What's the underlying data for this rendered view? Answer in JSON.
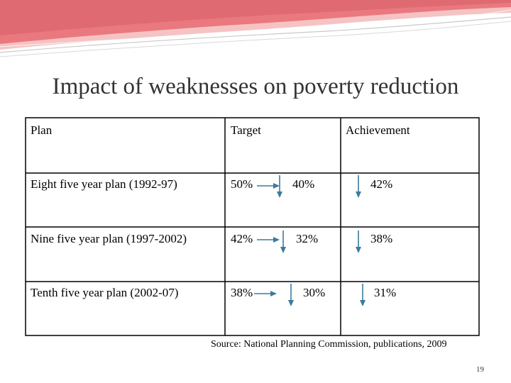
{
  "slide": {
    "title": "Impact of weaknesses on poverty reduction",
    "page_number": "19",
    "source": "Source: National Planning Commission, publications, 2009"
  },
  "table": {
    "headers": {
      "plan": "Plan",
      "target": "Target",
      "achievement": "Achievement"
    },
    "rows": [
      {
        "plan": "Eight five year plan (1992-97)",
        "target": "50%",
        "target_revised": "40%",
        "achievement": "42%"
      },
      {
        "plan": "Nine five year plan (1997-2002)",
        "target": "42%",
        "target_revised": "32%",
        "achievement": "38%"
      },
      {
        "plan": "Tenth five year plan (2002-07)",
        "target": "38%",
        "target_revised": "30%",
        "achievement": "31%"
      }
    ]
  },
  "colors": {
    "banner_pink": "#e9797e",
    "banner_light": "#f6c3c3",
    "arrow_blue": "#3c7b9c",
    "table_border": "#000000"
  }
}
